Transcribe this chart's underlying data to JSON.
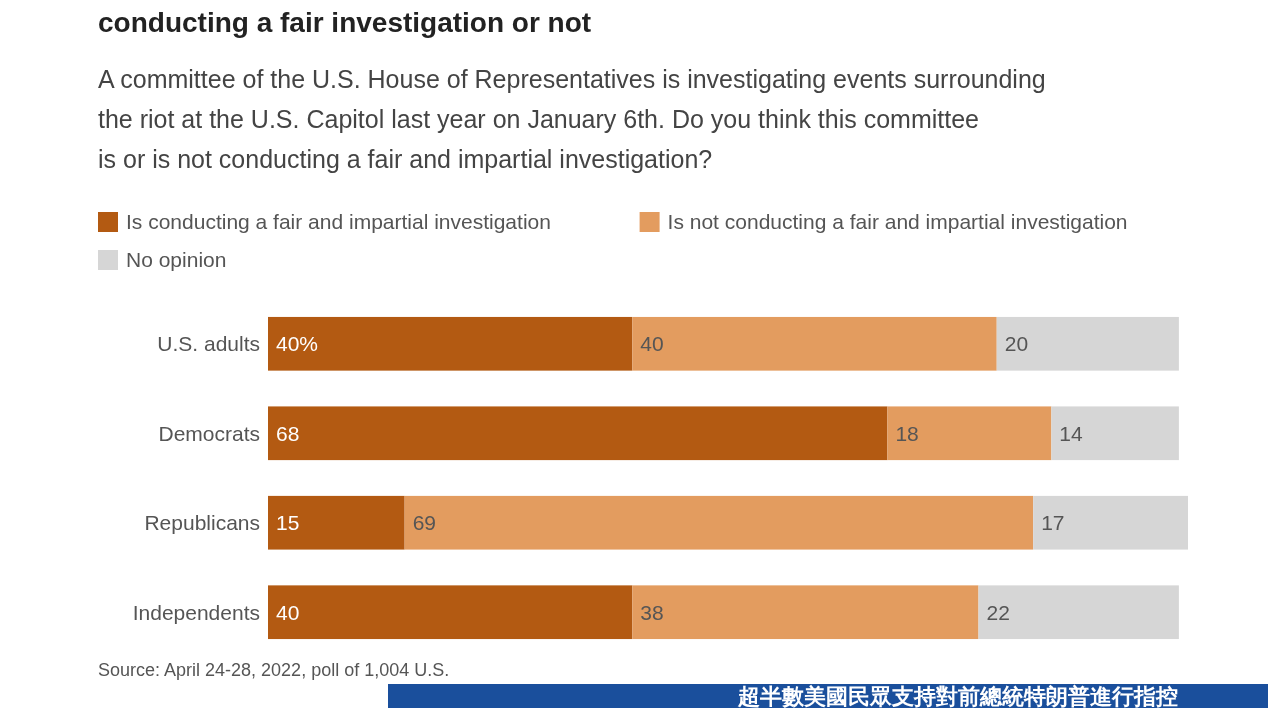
{
  "chart_data": {
    "type": "bar",
    "orientation": "horizontal",
    "stacked": true,
    "title": "conducting a fair investigation or not",
    "subtitle": "A committee of the U.S. House of Representatives is investigating events surrounding the riot at the U.S. Capitol last year on January 6th. Do you think this committee is or is not conducting a fair and impartial investigation?",
    "categories": [
      "U.S. adults",
      "Democrats",
      "Republicans",
      "Independents"
    ],
    "series": [
      {
        "name": "Is conducting a fair and impartial investigation",
        "color": "#b35a12",
        "values": [
          40,
          68,
          15,
          40
        ],
        "value_labels": [
          "40%",
          "68",
          "15",
          "40"
        ]
      },
      {
        "name": "Is not conducting a fair and impartial investigation",
        "color": "#e39c5f",
        "values": [
          40,
          18,
          69,
          38
        ],
        "value_labels": [
          "40",
          "18",
          "69",
          "38"
        ]
      },
      {
        "name": "No opinion",
        "color": "#d6d6d6",
        "values": [
          20,
          14,
          17,
          22
        ],
        "value_labels": [
          "20",
          "14",
          "17",
          "22"
        ]
      }
    ],
    "legend": "top",
    "annotations": [
      "Source: April 24-28, 2022, poll of 1,004 U.S.",
      "超半數美國民眾支持對前總統特朗普進行指控"
    ]
  }
}
